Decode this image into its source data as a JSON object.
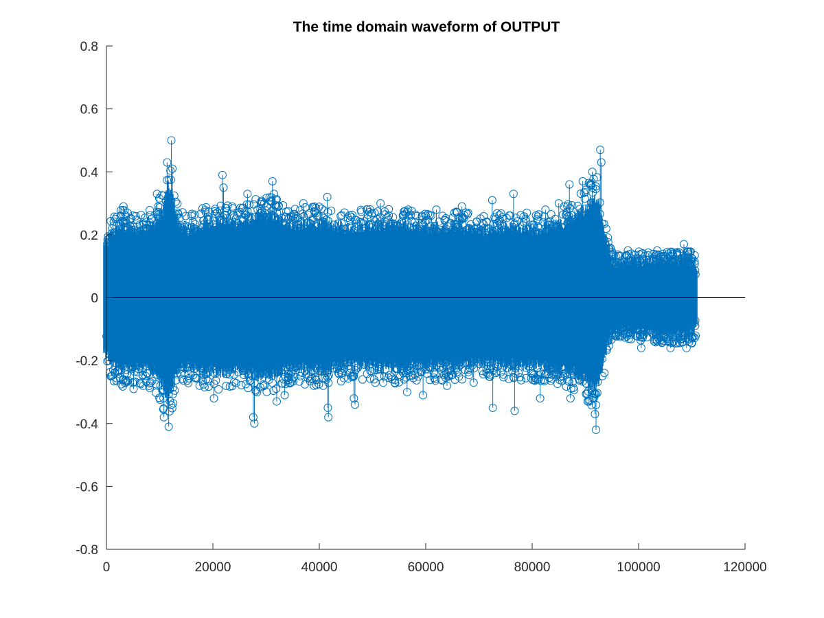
{
  "chart_data": {
    "type": "stem",
    "title": "The time domain waveform of OUTPUT",
    "xlabel": "",
    "ylabel": "",
    "xlim": [
      0,
      120000
    ],
    "ylim": [
      -0.8,
      0.8
    ],
    "x_ticks": [
      0,
      20000,
      40000,
      60000,
      80000,
      100000,
      120000
    ],
    "x_tick_labels": [
      "0",
      "20000",
      "40000",
      "60000",
      "80000",
      "100000",
      "120000"
    ],
    "y_ticks": [
      -0.8,
      -0.6,
      -0.4,
      -0.2,
      0,
      0.2,
      0.4,
      0.6,
      0.8
    ],
    "y_tick_labels": [
      "-0.8",
      "-0.6",
      "-0.4",
      "-0.2",
      "0",
      "0.2",
      "0.4",
      "0.6",
      "0.8"
    ],
    "grid": false,
    "legend": "none",
    "series": [
      {
        "color": "#0072bd",
        "marker": "circle",
        "sample_count": 111000,
        "envelope": {
          "x": [
            0,
            1000,
            3000,
            5000,
            7000,
            9000,
            10500,
            11500,
            12500,
            13500,
            15000,
            18000,
            21000,
            25000,
            28000,
            31000,
            35000,
            40000,
            45000,
            50000,
            55000,
            60000,
            65000,
            70000,
            75000,
            80000,
            85000,
            88000,
            90000,
            91500,
            92500,
            93500,
            94500,
            95500,
            100000,
            105000,
            110000,
            111000
          ],
          "max": [
            0.2,
            0.24,
            0.27,
            0.25,
            0.26,
            0.27,
            0.32,
            0.42,
            0.38,
            0.28,
            0.25,
            0.27,
            0.29,
            0.28,
            0.3,
            0.31,
            0.27,
            0.28,
            0.26,
            0.27,
            0.27,
            0.26,
            0.27,
            0.25,
            0.26,
            0.25,
            0.27,
            0.3,
            0.33,
            0.38,
            0.36,
            0.26,
            0.16,
            0.13,
            0.14,
            0.14,
            0.14,
            0.12
          ],
          "min": [
            -0.2,
            -0.25,
            -0.27,
            -0.26,
            -0.27,
            -0.28,
            -0.33,
            -0.38,
            -0.33,
            -0.27,
            -0.26,
            -0.27,
            -0.28,
            -0.27,
            -0.29,
            -0.29,
            -0.26,
            -0.27,
            -0.25,
            -0.26,
            -0.26,
            -0.25,
            -0.26,
            -0.24,
            -0.25,
            -0.25,
            -0.27,
            -0.28,
            -0.31,
            -0.34,
            -0.32,
            -0.24,
            -0.14,
            -0.12,
            -0.13,
            -0.14,
            -0.14,
            -0.11
          ]
        },
        "peaks": [
          [
            3200,
            0.29
          ],
          [
            5100,
            -0.29
          ],
          [
            9500,
            0.33
          ],
          [
            10800,
            -0.38
          ],
          [
            11400,
            0.43
          ],
          [
            11700,
            -0.41
          ],
          [
            12200,
            0.5
          ],
          [
            12400,
            0.41
          ],
          [
            16000,
            0.26
          ],
          [
            17500,
            -0.28
          ],
          [
            20200,
            -0.32
          ],
          [
            21800,
            0.39
          ],
          [
            22000,
            0.35
          ],
          [
            26500,
            0.33
          ],
          [
            27600,
            -0.38
          ],
          [
            27800,
            -0.4
          ],
          [
            31200,
            0.37
          ],
          [
            31500,
            0.33
          ],
          [
            32000,
            -0.33
          ],
          [
            33500,
            -0.31
          ],
          [
            37000,
            0.3
          ],
          [
            39000,
            -0.28
          ],
          [
            41500,
            0.32
          ],
          [
            41600,
            -0.35
          ],
          [
            41700,
            -0.38
          ],
          [
            46500,
            -0.32
          ],
          [
            46700,
            -0.34
          ],
          [
            49000,
            0.28
          ],
          [
            51500,
            0.3
          ],
          [
            52000,
            -0.27
          ],
          [
            56500,
            -0.3
          ],
          [
            56700,
            0.28
          ],
          [
            59500,
            -0.31
          ],
          [
            60000,
            0.26
          ],
          [
            62000,
            0.28
          ],
          [
            64000,
            -0.28
          ],
          [
            66800,
            0.29
          ],
          [
            69000,
            -0.27
          ],
          [
            72500,
            0.31
          ],
          [
            72600,
            -0.35
          ],
          [
            76500,
            0.33
          ],
          [
            76700,
            -0.36
          ],
          [
            79000,
            0.27
          ],
          [
            81500,
            -0.32
          ],
          [
            82500,
            0.28
          ],
          [
            85000,
            0.3
          ],
          [
            87000,
            0.36
          ],
          [
            87200,
            -0.32
          ],
          [
            89500,
            0.37
          ],
          [
            90500,
            -0.33
          ],
          [
            91300,
            0.4
          ],
          [
            91800,
            -0.37
          ],
          [
            92000,
            -0.42
          ],
          [
            92800,
            0.47
          ],
          [
            93000,
            0.43
          ],
          [
            98000,
            0.15
          ],
          [
            100500,
            -0.16
          ],
          [
            103500,
            0.15
          ],
          [
            106000,
            -0.16
          ],
          [
            108500,
            0.17
          ],
          [
            109000,
            -0.16
          ]
        ]
      }
    ]
  }
}
